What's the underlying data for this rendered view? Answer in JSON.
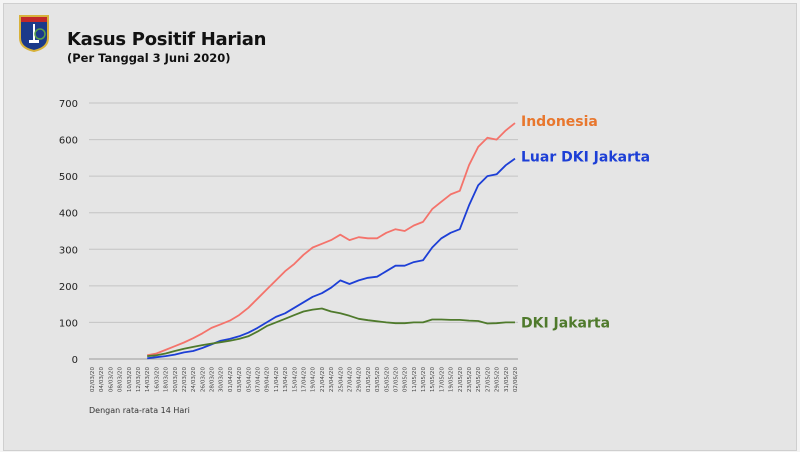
{
  "header": {
    "title": "Kasus Positif Harian",
    "subtitle": "(Per Tanggal 3 Juni 2020)",
    "logo_text": "JAYA RAYA"
  },
  "footnote": "Dengan rata-rata 14 Hari",
  "chart_data": {
    "type": "line",
    "title": "Kasus Positif Harian",
    "xlabel": "",
    "ylabel": "",
    "ylim": [
      0,
      700
    ],
    "yticks": [
      0,
      100,
      200,
      300,
      400,
      500,
      600,
      700
    ],
    "grid": true,
    "legend": "right (inline labels at line ends)",
    "x": [
      "02/03/20",
      "04/03/20",
      "06/03/20",
      "08/03/20",
      "10/03/20",
      "12/03/20",
      "14/03/20",
      "16/03/20",
      "18/03/20",
      "20/03/20",
      "22/03/20",
      "24/03/20",
      "26/03/20",
      "28/03/20",
      "30/03/20",
      "01/04/20",
      "03/04/20",
      "05/04/20",
      "07/04/20",
      "09/04/20",
      "11/04/20",
      "13/04/20",
      "15/04/20",
      "17/04/20",
      "19/04/20",
      "21/04/20",
      "23/04/20",
      "25/04/20",
      "27/04/20",
      "29/04/20",
      "01/05/20",
      "03/05/20",
      "05/05/20",
      "07/05/20",
      "09/05/20",
      "11/05/20",
      "13/05/20",
      "15/05/20",
      "17/05/20",
      "19/05/20",
      "21/05/20",
      "23/05/20",
      "25/05/20",
      "27/05/20",
      "29/05/20",
      "31/05/20",
      "02/06/20"
    ],
    "series": [
      {
        "name": "Indonesia",
        "color": "#f4736b",
        "label_color": "#e8772e",
        "values": [
          null,
          null,
          null,
          null,
          null,
          null,
          10,
          15,
          25,
          35,
          45,
          57,
          70,
          85,
          95,
          105,
          120,
          140,
          165,
          190,
          215,
          240,
          260,
          285,
          305,
          315,
          325,
          340,
          325,
          333,
          330,
          330,
          345,
          355,
          350,
          365,
          375,
          410,
          430,
          450,
          460,
          530,
          580,
          605,
          600,
          625,
          645
        ]
      },
      {
        "name": "Luar DKI Jakarta",
        "color": "#1d3fd6",
        "label_color": "#1d3fd6",
        "values": [
          null,
          null,
          null,
          null,
          null,
          null,
          2,
          5,
          8,
          12,
          18,
          22,
          30,
          40,
          50,
          55,
          62,
          72,
          85,
          100,
          115,
          125,
          140,
          155,
          170,
          180,
          195,
          215,
          205,
          215,
          222,
          225,
          240,
          255,
          255,
          265,
          270,
          305,
          330,
          345,
          355,
          420,
          475,
          500,
          505,
          530,
          548
        ]
      },
      {
        "name": "DKI Jakarta",
        "color": "#4f7a2c",
        "label_color": "#4f7a2c",
        "values": [
          null,
          null,
          null,
          null,
          null,
          null,
          8,
          10,
          15,
          22,
          28,
          33,
          38,
          42,
          46,
          50,
          55,
          62,
          75,
          90,
          100,
          110,
          120,
          130,
          135,
          138,
          130,
          125,
          118,
          110,
          106,
          103,
          100,
          98,
          98,
          100,
          100,
          108,
          108,
          107,
          107,
          105,
          104,
          97,
          98,
          100,
          100
        ]
      }
    ]
  }
}
